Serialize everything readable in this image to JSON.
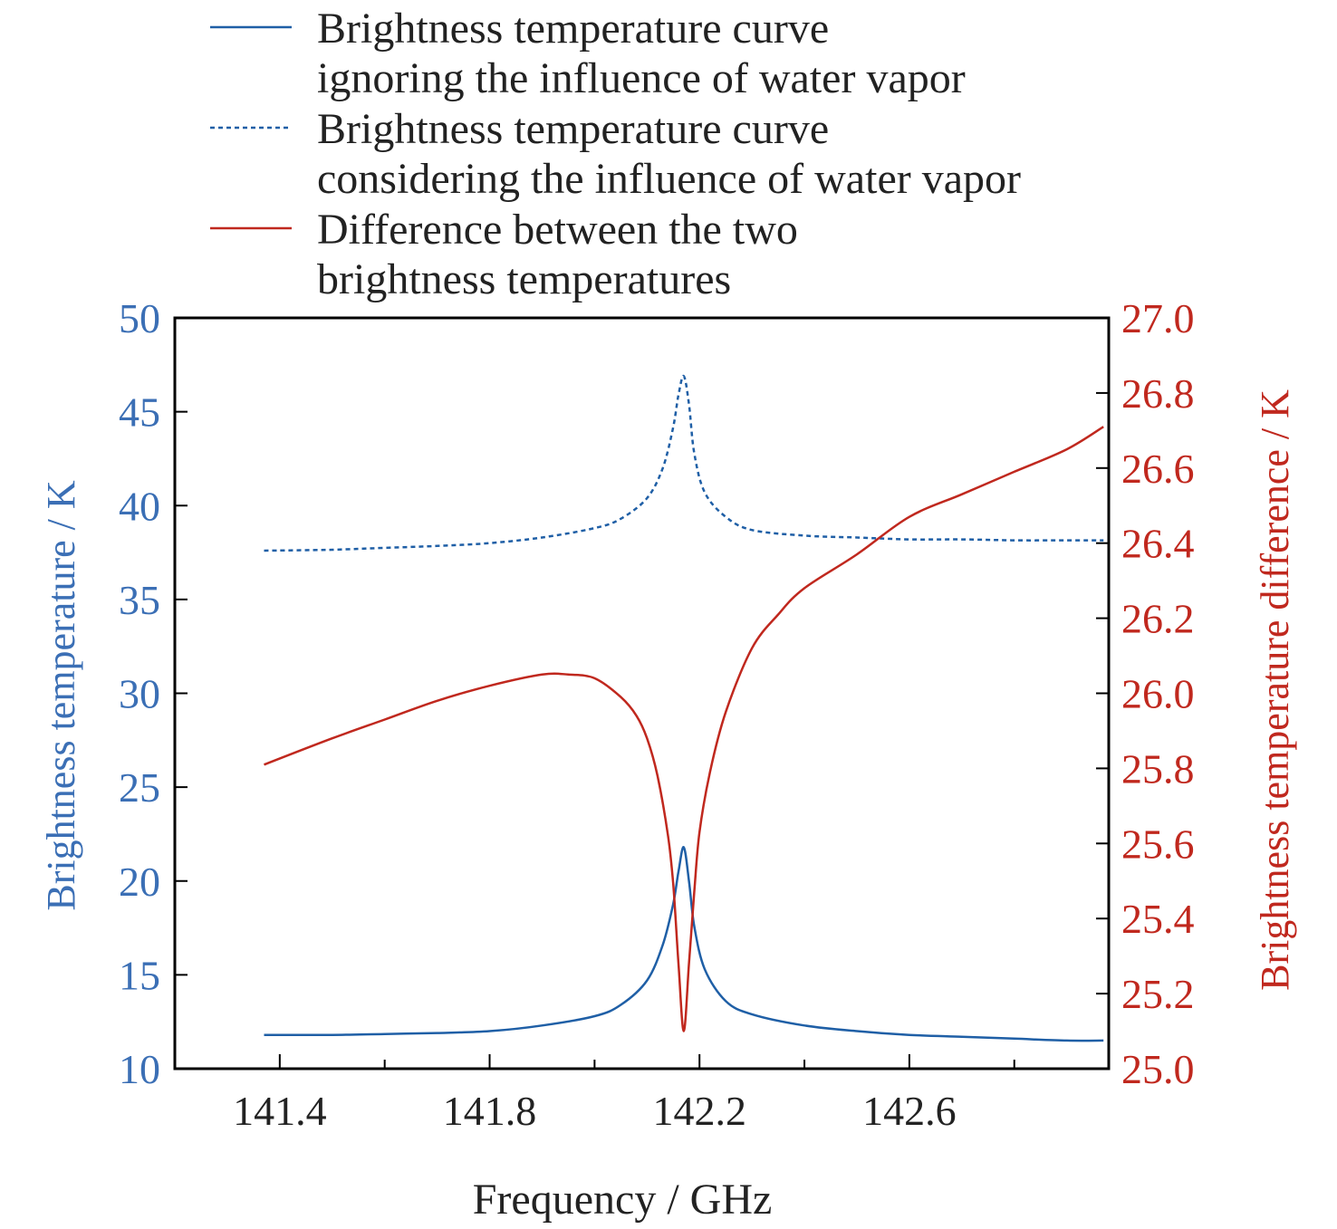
{
  "chart_data": {
    "type": "line",
    "xlabel": "Frequency / GHz",
    "ylabel_left": "Brightness temperature / K",
    "ylabel_right": "Brightness temperature difference / K",
    "xlim": [
      141.2,
      142.98
    ],
    "ylim_left": [
      10,
      50
    ],
    "ylim_right": [
      25.0,
      27.0
    ],
    "x_ticks": [
      "141.4",
      "141.8",
      "142.2",
      "142.6"
    ],
    "y_ticks_left": [
      "10",
      "15",
      "20",
      "25",
      "30",
      "35",
      "40",
      "45",
      "50"
    ],
    "y_ticks_right": [
      "25.0",
      "25.2",
      "25.4",
      "25.6",
      "25.8",
      "26.0",
      "26.2",
      "26.4",
      "26.6",
      "26.8",
      "27.0"
    ],
    "grid": false,
    "legend_position": "top",
    "legend": [
      "Brightness temperature curve ignoring the influence of water vapor",
      "Brightness temperature curve considering the influence of water vapor",
      "Difference between the two brightness temperatures"
    ],
    "legend_lines": [
      [
        "Brightness temperature curve",
        "ignoring the influence of water vapor"
      ],
      [
        "Brightness temperature curve",
        "considering the influence of water vapor"
      ],
      [
        "Difference between the two",
        "brightness temperatures"
      ]
    ],
    "series": [
      {
        "name": "Brightness temperature curve ignoring the influence of water vapor",
        "axis": "left",
        "style": "solid",
        "color": "#1f5fa6",
        "x": [
          141.37,
          141.5,
          141.6,
          141.7,
          141.8,
          141.9,
          142.0,
          142.05,
          142.1,
          142.13,
          142.15,
          142.16,
          142.17,
          142.18,
          142.19,
          142.21,
          142.25,
          142.3,
          142.4,
          142.5,
          142.6,
          142.7,
          142.8,
          142.9,
          142.97
        ],
        "y": [
          11.8,
          11.8,
          11.85,
          11.9,
          12.0,
          12.3,
          12.8,
          13.4,
          14.7,
          16.6,
          18.8,
          20.5,
          21.8,
          20.0,
          17.6,
          15.3,
          13.6,
          12.9,
          12.3,
          12.0,
          11.8,
          11.7,
          11.6,
          11.5,
          11.5
        ]
      },
      {
        "name": "Brightness temperature curve considering the influence of water vapor",
        "axis": "left",
        "style": "dashed",
        "color": "#1f5fa6",
        "x": [
          141.37,
          141.5,
          141.6,
          141.7,
          141.8,
          141.9,
          142.0,
          142.05,
          142.1,
          142.13,
          142.15,
          142.16,
          142.17,
          142.18,
          142.19,
          142.21,
          142.25,
          142.3,
          142.4,
          142.5,
          142.6,
          142.7,
          142.8,
          142.9,
          142.97
        ],
        "y": [
          37.6,
          37.65,
          37.75,
          37.85,
          38.0,
          38.3,
          38.8,
          39.3,
          40.4,
          42.0,
          44.2,
          45.9,
          46.9,
          45.4,
          42.8,
          40.7,
          39.4,
          38.7,
          38.4,
          38.3,
          38.2,
          38.2,
          38.15,
          38.15,
          38.15
        ]
      },
      {
        "name": "Difference between the two brightness temperatures",
        "axis": "right",
        "style": "solid",
        "color": "#c0281e",
        "x": [
          141.37,
          141.5,
          141.6,
          141.7,
          141.8,
          141.9,
          141.95,
          142.0,
          142.05,
          142.08,
          142.1,
          142.12,
          142.14,
          142.15,
          142.16,
          142.17,
          142.18,
          142.19,
          142.2,
          142.22,
          142.25,
          142.3,
          142.35,
          142.4,
          142.5,
          142.6,
          142.7,
          142.8,
          142.9,
          142.97
        ],
        "y": [
          25.81,
          25.88,
          25.93,
          25.98,
          26.02,
          26.05,
          26.05,
          26.04,
          25.99,
          25.94,
          25.88,
          25.78,
          25.62,
          25.49,
          25.28,
          25.1,
          25.28,
          25.47,
          25.63,
          25.79,
          25.95,
          26.12,
          26.21,
          26.28,
          26.37,
          26.47,
          26.53,
          26.59,
          26.65,
          26.71
        ]
      }
    ]
  }
}
